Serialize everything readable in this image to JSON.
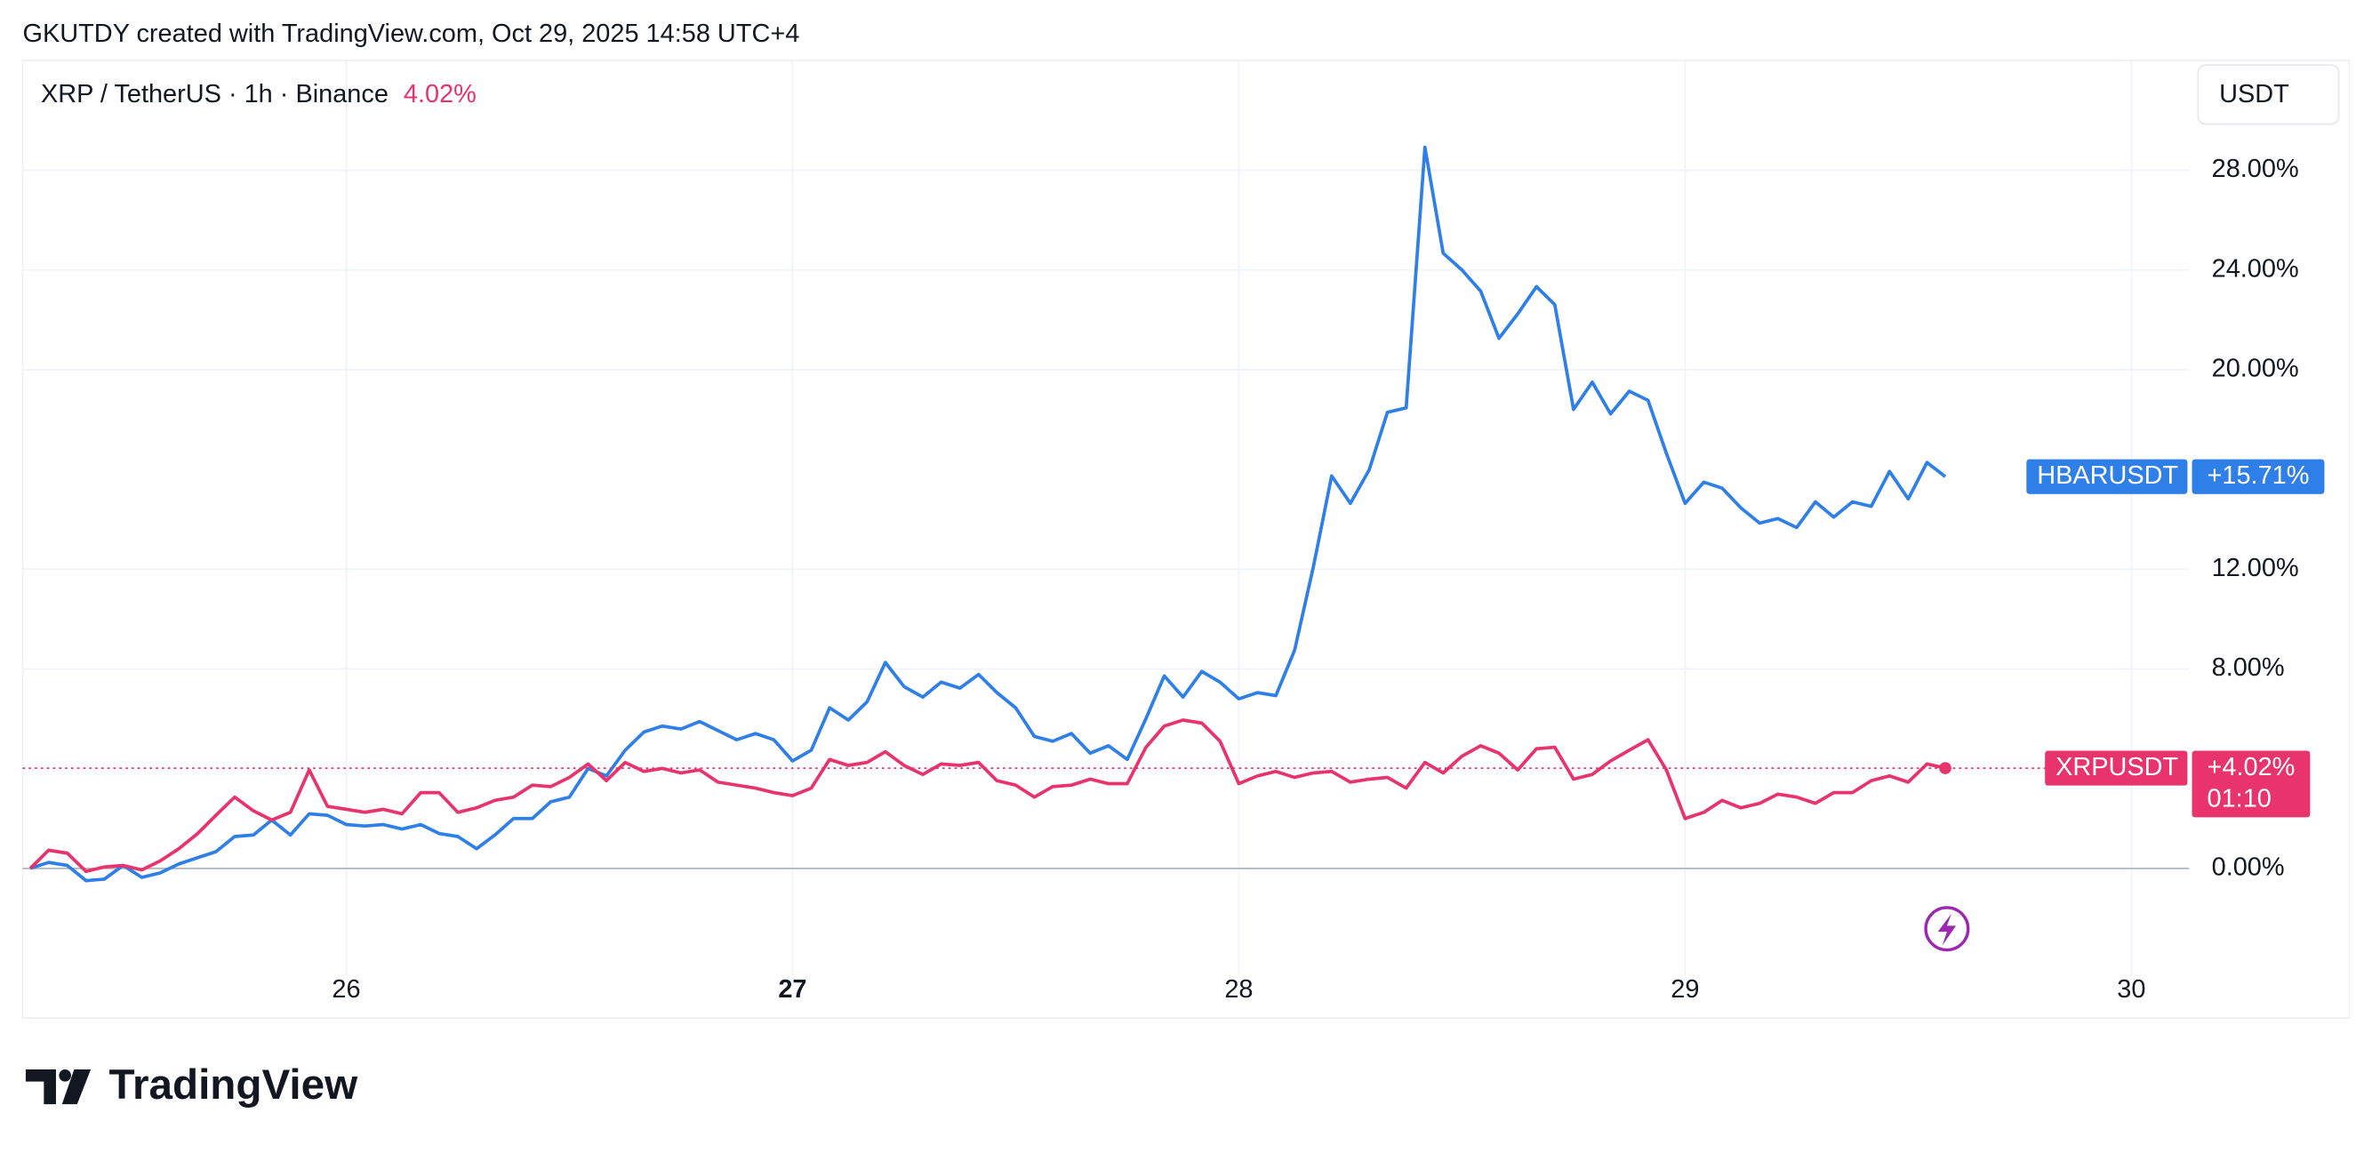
{
  "header": "GKUTDY created with TradingView.com, Oct 29, 2025 14:58 UTC+4",
  "brand": "TradingView",
  "chart_data": {
    "type": "line",
    "title": "XRP / TetherUS · 1h · Binance",
    "title_change": "4.02%",
    "currency": "USDT",
    "grid": true,
    "x": [
      25.292,
      25.333,
      25.375,
      25.417,
      25.458,
      25.5,
      25.542,
      25.583,
      25.625,
      25.667,
      25.708,
      25.75,
      25.792,
      25.833,
      25.875,
      25.917,
      25.958,
      26,
      26.042,
      26.083,
      26.125,
      26.167,
      26.208,
      26.25,
      26.292,
      26.333,
      26.375,
      26.417,
      26.458,
      26.5,
      26.542,
      26.583,
      26.625,
      26.667,
      26.708,
      26.75,
      26.792,
      26.833,
      26.875,
      26.917,
      26.958,
      27,
      27.042,
      27.083,
      27.125,
      27.167,
      27.208,
      27.25,
      27.292,
      27.333,
      27.375,
      27.417,
      27.458,
      27.5,
      27.542,
      27.583,
      27.625,
      27.667,
      27.708,
      27.75,
      27.792,
      27.833,
      27.875,
      27.917,
      27.958,
      28,
      28.042,
      28.083,
      28.125,
      28.167,
      28.208,
      28.25,
      28.292,
      28.333,
      28.375,
      28.417,
      28.458,
      28.5,
      28.542,
      28.583,
      28.625,
      28.667,
      28.708,
      28.75,
      28.792,
      28.833,
      28.875,
      28.917,
      28.958,
      29,
      29.042,
      29.083,
      29.125,
      29.167,
      29.208,
      29.25,
      29.292,
      29.333,
      29.375,
      29.417,
      29.458,
      29.5,
      29.542,
      29.583
    ],
    "xlim": [
      25.275,
      30.129
    ],
    "xticks": [
      26,
      27,
      28,
      29,
      30
    ],
    "ylim": [
      -4.3,
      32.4
    ],
    "yticks": [
      {
        "value": 0,
        "label": "0.00%"
      },
      {
        "value": 8,
        "label": "8.00%"
      },
      {
        "value": 12,
        "label": "12.00%"
      },
      {
        "value": 20,
        "label": "20.00%"
      },
      {
        "value": 24,
        "label": "24.00%"
      },
      {
        "value": 28,
        "label": "28.00%"
      }
    ],
    "series": [
      {
        "name": "HBARUSDT",
        "color": "#2f7fe9",
        "last_label": "+15.71%",
        "values": [
          0,
          0.24,
          0.12,
          -0.49,
          -0.43,
          0.12,
          -0.36,
          -0.18,
          0.18,
          0.43,
          0.67,
          1.28,
          1.34,
          1.94,
          1.34,
          2.19,
          2.13,
          1.76,
          1.7,
          1.76,
          1.58,
          1.76,
          1.4,
          1.28,
          0.79,
          1.34,
          2,
          2,
          2.67,
          2.86,
          4.01,
          3.71,
          4.74,
          5.47,
          5.71,
          5.59,
          5.89,
          5.53,
          5.16,
          5.41,
          5.16,
          4.31,
          4.74,
          6.44,
          5.95,
          6.68,
          8.26,
          7.29,
          6.87,
          7.47,
          7.23,
          7.78,
          7.05,
          6.44,
          5.29,
          5.1,
          5.41,
          4.62,
          4.92,
          4.37,
          6.01,
          7.72,
          6.87,
          7.9,
          7.47,
          6.8,
          7.05,
          6.93,
          8.75,
          12.09,
          15.74,
          14.64,
          15.98,
          18.29,
          18.47,
          28.92,
          24.67,
          24,
          23.15,
          21.26,
          22.24,
          23.33,
          22.61,
          18.41,
          19.5,
          18.23,
          19.14,
          18.77,
          16.65,
          14.64,
          15.49,
          15.25,
          14.46,
          13.85,
          14.03,
          13.67,
          14.7,
          14.09,
          14.7,
          14.52,
          15.92,
          14.82,
          16.28,
          15.71
        ]
      },
      {
        "name": "XRPUSDT",
        "color": "#e8336d",
        "last_label": "+4.02%",
        "countdown": "01:10",
        "values": [
          0,
          0.73,
          0.61,
          -0.12,
          0.06,
          0.12,
          -0.06,
          0.3,
          0.79,
          1.4,
          2.13,
          2.86,
          2.31,
          1.94,
          2.25,
          3.95,
          2.49,
          2.37,
          2.25,
          2.37,
          2.19,
          3.04,
          3.04,
          2.25,
          2.43,
          2.73,
          2.86,
          3.34,
          3.28,
          3.65,
          4.19,
          3.52,
          4.25,
          3.89,
          4.01,
          3.83,
          3.95,
          3.46,
          3.34,
          3.22,
          3.04,
          2.92,
          3.22,
          4.37,
          4.13,
          4.25,
          4.68,
          4.13,
          3.77,
          4.19,
          4.13,
          4.25,
          3.52,
          3.34,
          2.86,
          3.28,
          3.34,
          3.58,
          3.4,
          3.4,
          4.86,
          5.71,
          5.95,
          5.83,
          5.1,
          3.4,
          3.71,
          3.89,
          3.65,
          3.83,
          3.89,
          3.46,
          3.58,
          3.65,
          3.22,
          4.25,
          3.83,
          4.5,
          4.92,
          4.62,
          3.95,
          4.8,
          4.86,
          3.58,
          3.77,
          4.31,
          4.74,
          5.16,
          3.95,
          2,
          2.25,
          2.73,
          2.43,
          2.61,
          2.98,
          2.86,
          2.61,
          3.04,
          3.04,
          3.52,
          3.71,
          3.46,
          4.19,
          4.02
        ]
      }
    ]
  }
}
